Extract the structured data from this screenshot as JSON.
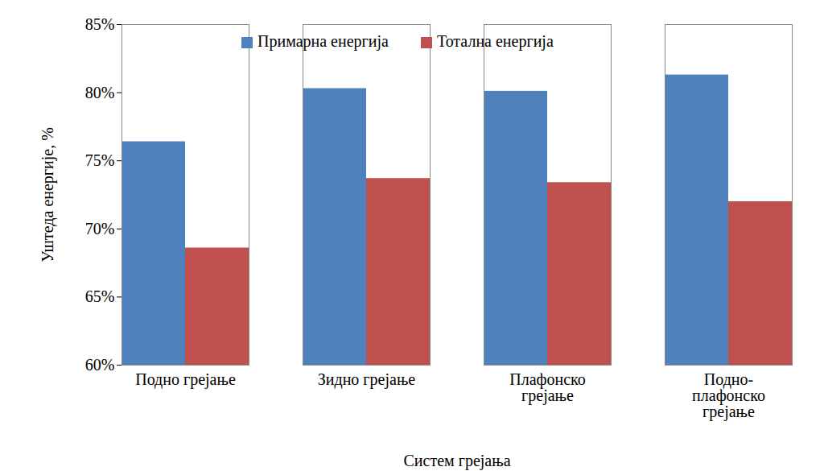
{
  "chart_data": {
    "type": "bar",
    "x_label": "Систем грејања",
    "y_label": "Уштеда енергије, %",
    "categories": [
      "Подно грејање",
      "Зидно грејање",
      "Плафонско\nгрејање",
      "Подно-\nплафонско\nгрејање"
    ],
    "series": [
      {
        "name": "Примарна енергија",
        "color": "#4f81bd",
        "values": [
          76.4,
          80.3,
          80.1,
          81.3
        ]
      },
      {
        "name": "Тотална енергија",
        "color": "#c0504d",
        "values": [
          68.6,
          73.7,
          73.4,
          72.0
        ]
      }
    ],
    "ylim": [
      60,
      85
    ],
    "yticks": [
      {
        "value": 60,
        "label": "60%"
      },
      {
        "value": 65,
        "label": "65%"
      },
      {
        "value": 70,
        "label": "70%"
      },
      {
        "value": 75,
        "label": "75%"
      },
      {
        "value": 80,
        "label": "80%"
      },
      {
        "value": 85,
        "label": "85%"
      }
    ],
    "grid": false,
    "legend": "top"
  }
}
